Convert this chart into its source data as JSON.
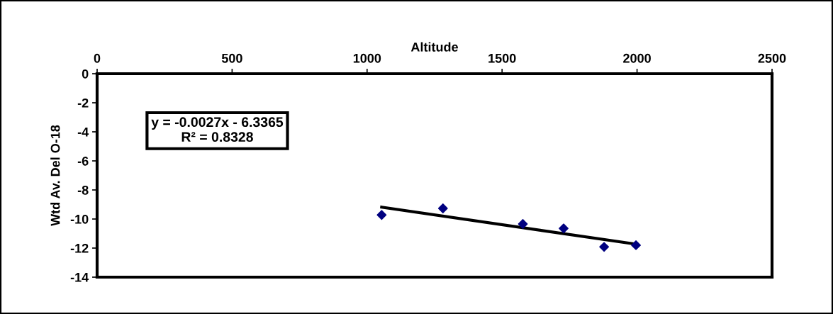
{
  "chart_data": {
    "type": "scatter",
    "xlabel": "Altitude",
    "ylabel": "Wtd Av. Del O-18",
    "xlim": [
      0,
      2500
    ],
    "xticks": [
      0,
      500,
      1000,
      1500,
      2000,
      2500
    ],
    "ylim": [
      -14,
      0
    ],
    "yticks": [
      0,
      -2,
      -4,
      -6,
      -8,
      -10,
      -12,
      -14
    ],
    "series": [
      {
        "color": "#000080",
        "marker": "diamond",
        "x": [
          1054,
          1281,
          1577,
          1728,
          1878,
          1996
        ],
        "values": [
          -9.72,
          -9.27,
          -10.34,
          -10.65,
          -11.92,
          -11.8
        ]
      },
      {
        "type": "line",
        "color": "#000000",
        "marker": "none",
        "line_style": "solid",
        "x": [
          1054,
          1996
        ],
        "values": [
          -9.18,
          -11.73
        ]
      }
    ],
    "annotations": [
      "y = -0.0027x - 6.3365\nR² = 0.8328"
    ],
    "grid": false,
    "legend": false
  }
}
